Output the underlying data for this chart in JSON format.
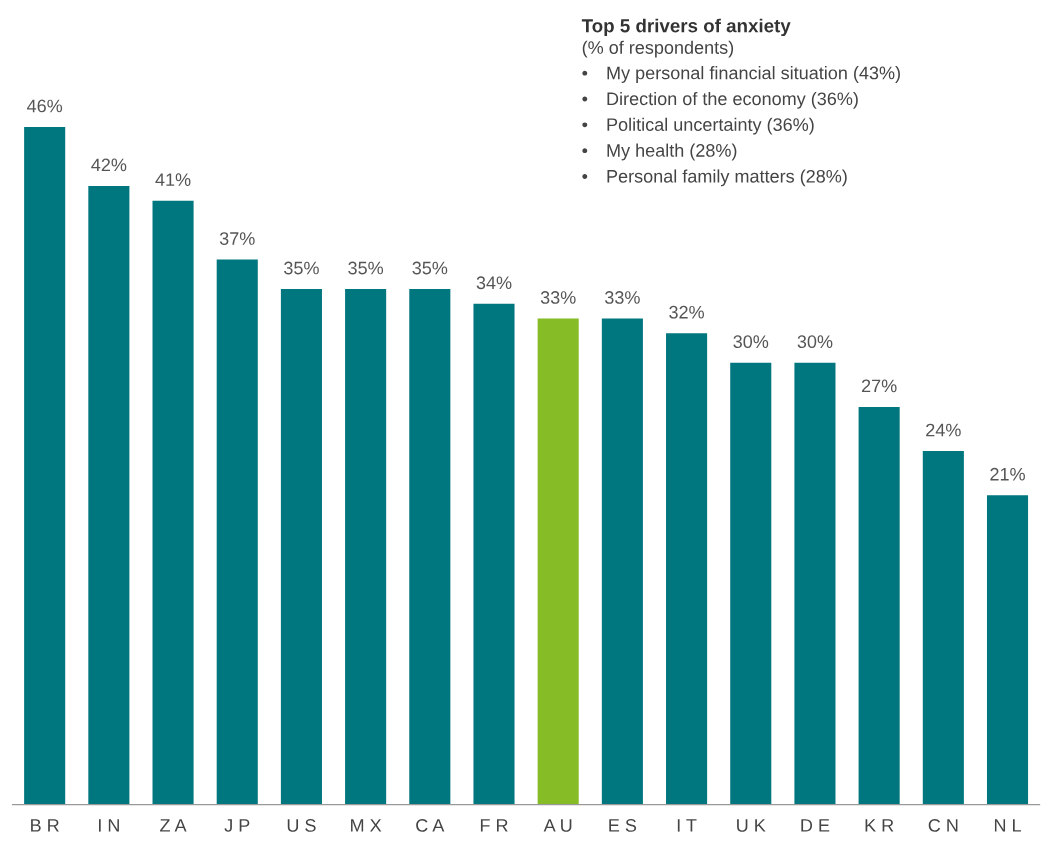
{
  "chart_data": {
    "type": "bar",
    "title": "Top 5 drivers of anxiety",
    "subtitle": "(% of respondents)",
    "annotations": [
      "• My personal financial situation (43%)",
      "• Direction of the economy (36%)",
      "• Political uncertainty (36%)",
      "• My health (28%)",
      "• Personal family matters (28%)"
    ],
    "categories": [
      "B R",
      "I N",
      "Z A",
      "J P",
      "U S",
      "M X",
      "C A",
      "F R",
      "A U",
      "E S",
      "I T",
      "U K",
      "D E",
      "K R",
      "C N",
      "N L"
    ],
    "values": [
      46,
      42,
      41,
      37,
      35,
      35,
      35,
      34,
      33,
      33,
      32,
      30,
      30,
      27,
      24,
      21
    ],
    "colors": [
      "#00767e",
      "#00767e",
      "#00767e",
      "#00767e",
      "#00767e",
      "#00767e",
      "#00767e",
      "#00767e",
      "#86bc25",
      "#00767e",
      "#00767e",
      "#00767e",
      "#00767e",
      "#00767e",
      "#00767e",
      "#00767e"
    ],
    "value_labels": [
      "46%",
      "42%",
      "41%",
      "37%",
      "35%",
      "35%",
      "35%",
      "34%",
      "33%",
      "33%",
      "32%",
      "30%",
      "30%",
      "27%",
      "24%",
      "21%"
    ],
    "grid": false,
    "legend": false
  }
}
